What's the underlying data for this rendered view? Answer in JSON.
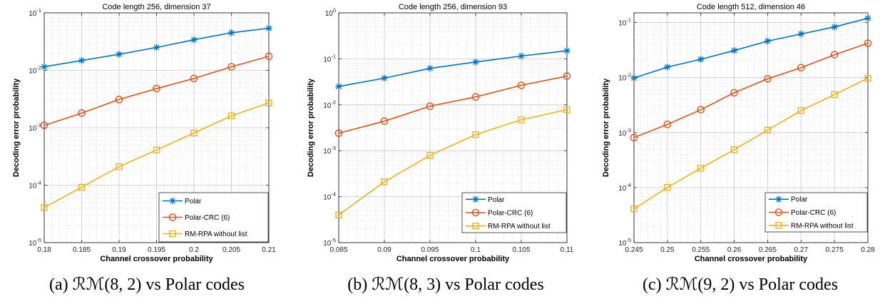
{
  "colors": {
    "polar": "#0072bd",
    "polar_crc": "#d95319",
    "rm_rpa": "#edb120"
  },
  "chart_data": [
    {
      "type": "line",
      "title": "Code length 256, dimension 37",
      "xlabel": "Channel crossover probability",
      "ylabel": "Decoding error probability",
      "x_scale": "linear",
      "y_scale": "log",
      "xlim": [
        0.18,
        0.21
      ],
      "ylim": [
        1e-05,
        0.1
      ],
      "grid": true,
      "legend_position": "bottom-right",
      "x_ticks": [
        0.18,
        0.185,
        0.19,
        0.195,
        0.2,
        0.205,
        0.21
      ],
      "x_tick_labels": [
        "0.18",
        "0.185",
        "0.19",
        "0.195",
        "0.2",
        "0.205",
        "0.21"
      ],
      "y_tick_exponents": [
        -5,
        -4,
        -3,
        -2,
        -1
      ],
      "x": [
        0.18,
        0.185,
        0.19,
        0.195,
        0.2,
        0.205,
        0.21
      ],
      "series": [
        {
          "name": "Polar",
          "marker": "star",
          "values": [
            0.0115,
            0.0148,
            0.019,
            0.025,
            0.034,
            0.045,
            0.054
          ]
        },
        {
          "name": "Polar-CRC (6)",
          "marker": "circle",
          "values": [
            0.0011,
            0.0018,
            0.0031,
            0.0048,
            0.0072,
            0.0115,
            0.0175
          ]
        },
        {
          "name": "RM-RPA without list",
          "marker": "square",
          "values": [
            4.1e-05,
            9.2e-05,
            0.00021,
            0.00041,
            0.00081,
            0.00161,
            0.0027
          ]
        }
      ],
      "caption": "(a) ℛℳ(8, 2) vs Polar codes"
    },
    {
      "type": "line",
      "title": "Code length 256, dimension 93",
      "xlabel": "Channel crossover probability",
      "ylabel": "Decoding error probability",
      "x_scale": "linear",
      "y_scale": "log",
      "xlim": [
        0.085,
        0.11
      ],
      "ylim": [
        1e-05,
        1
      ],
      "grid": true,
      "legend_position": "bottom-right",
      "x_ticks": [
        0.085,
        0.09,
        0.095,
        0.1,
        0.105,
        0.11
      ],
      "x_tick_labels": [
        "0.085",
        "0.09",
        "0.095",
        "0.1",
        "0.105",
        "0.11"
      ],
      "y_tick_exponents": [
        -5,
        -4,
        -3,
        -2,
        -1,
        0
      ],
      "x": [
        0.085,
        0.09,
        0.095,
        0.1,
        0.105,
        0.11
      ],
      "series": [
        {
          "name": "Polar",
          "marker": "star",
          "values": [
            0.025,
            0.038,
            0.062,
            0.085,
            0.115,
            0.15
          ]
        },
        {
          "name": "Polar-CRC (6)",
          "marker": "circle",
          "values": [
            0.0024,
            0.0044,
            0.0093,
            0.0148,
            0.0265,
            0.042
          ]
        },
        {
          "name": "RM-RPA without list",
          "marker": "square",
          "values": [
            4e-05,
            0.00021,
            0.00079,
            0.00224,
            0.0047,
            0.0078
          ]
        }
      ],
      "caption": "(b) ℛℳ(8, 3) vs Polar codes"
    },
    {
      "type": "line",
      "title": "Code length 512, dimension 46",
      "xlabel": "Channel crossover probability",
      "ylabel": "Decoding error probability",
      "x_scale": "linear",
      "y_scale": "log",
      "xlim": [
        0.245,
        0.28
      ],
      "ylim": [
        1e-05,
        0.15
      ],
      "grid": true,
      "legend_position": "bottom-right",
      "x_ticks": [
        0.245,
        0.25,
        0.255,
        0.26,
        0.265,
        0.27,
        0.275,
        0.28
      ],
      "x_tick_labels": [
        "0.245",
        "0.25",
        "0.255",
        "0.26",
        "0.265",
        "0.27",
        "0.275",
        "0.28"
      ],
      "y_tick_exponents": [
        -5,
        -4,
        -3,
        -2,
        -1
      ],
      "x": [
        0.245,
        0.25,
        0.255,
        0.26,
        0.265,
        0.27,
        0.275,
        0.28
      ],
      "series": [
        {
          "name": "Polar",
          "marker": "star",
          "values": [
            0.0098,
            0.0155,
            0.0215,
            0.031,
            0.046,
            0.062,
            0.083,
            0.12
          ]
        },
        {
          "name": "Polar-CRC (6)",
          "marker": "circle",
          "values": [
            0.00081,
            0.00141,
            0.0026,
            0.0053,
            0.0095,
            0.0151,
            0.026,
            0.042
          ]
        },
        {
          "name": "RM-RPA without list",
          "marker": "square",
          "values": [
            4.1e-05,
            0.000101,
            0.000225,
            0.00049,
            0.00111,
            0.00251,
            0.0049,
            0.0097
          ]
        }
      ],
      "caption": "(c) ℛℳ(9, 2) vs Polar codes"
    }
  ]
}
